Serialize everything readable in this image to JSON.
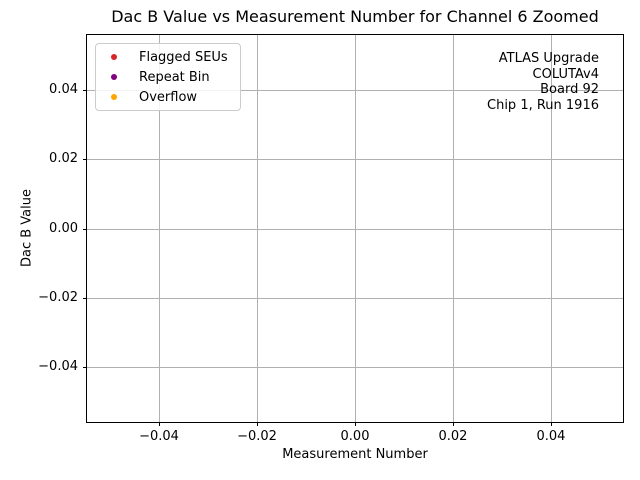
{
  "chart_data": {
    "type": "scatter",
    "title": "Dac B Value vs Measurement Number for Channel 6 Zoomed",
    "xlabel": "Measurement Number",
    "ylabel": "Dac B Value",
    "xlim": [
      -0.0547,
      0.0547
    ],
    "ylim": [
      -0.056,
      0.056
    ],
    "grid": true,
    "xticks": [
      {
        "value": -0.04,
        "label": "−0.04"
      },
      {
        "value": -0.02,
        "label": "−0.02"
      },
      {
        "value": 0.0,
        "label": "0.00"
      },
      {
        "value": 0.02,
        "label": "0.02"
      },
      {
        "value": 0.04,
        "label": "0.04"
      }
    ],
    "yticks": [
      {
        "value": -0.04,
        "label": "−0.04"
      },
      {
        "value": -0.02,
        "label": "−0.02"
      },
      {
        "value": 0.0,
        "label": "0.00"
      },
      {
        "value": 0.02,
        "label": "0.02"
      },
      {
        "value": 0.04,
        "label": "0.04"
      }
    ],
    "legend": {
      "position": "upper-left",
      "items": [
        {
          "label": "Flagged SEUs",
          "color": "#d62728",
          "marker": "circle"
        },
        {
          "label": "Repeat Bin",
          "color": "#800080",
          "marker": "circle"
        },
        {
          "label": "Overflow",
          "color": "#ffa500",
          "marker": "circle"
        }
      ]
    },
    "series": [
      {
        "name": "Flagged SEUs",
        "color": "#d62728",
        "points": []
      },
      {
        "name": "Repeat Bin",
        "color": "#800080",
        "points": []
      },
      {
        "name": "Overflow",
        "color": "#ffa500",
        "points": []
      }
    ],
    "annotation": {
      "align": "right",
      "lines": [
        "ATLAS Upgrade",
        "COLUTAv4",
        "Board 92",
        "Chip 1, Run 1916"
      ]
    }
  }
}
